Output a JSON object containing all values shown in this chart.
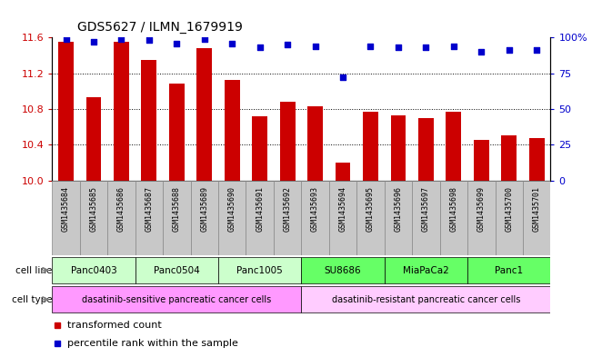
{
  "title": "GDS5627 / ILMN_1679919",
  "samples": [
    "GSM1435684",
    "GSM1435685",
    "GSM1435686",
    "GSM1435687",
    "GSM1435688",
    "GSM1435689",
    "GSM1435690",
    "GSM1435691",
    "GSM1435692",
    "GSM1435693",
    "GSM1435694",
    "GSM1435695",
    "GSM1435696",
    "GSM1435697",
    "GSM1435698",
    "GSM1435699",
    "GSM1435700",
    "GSM1435701"
  ],
  "bar_values": [
    11.55,
    10.93,
    11.55,
    11.35,
    11.08,
    11.48,
    11.13,
    10.72,
    10.88,
    10.83,
    10.2,
    10.77,
    10.73,
    10.7,
    10.77,
    10.46,
    10.51,
    10.48
  ],
  "dot_values": [
    99,
    97,
    99,
    98,
    96,
    99,
    96,
    93,
    95,
    94,
    72,
    94,
    93,
    93,
    94,
    90,
    91,
    91
  ],
  "bar_color": "#cc0000",
  "dot_color": "#0000cc",
  "ylim_left": [
    10.0,
    11.6
  ],
  "ylim_right": [
    0,
    100
  ],
  "yticks_left": [
    10.0,
    10.4,
    10.8,
    11.2,
    11.6
  ],
  "yticks_right": [
    0,
    25,
    50,
    75,
    100
  ],
  "ytick_labels_right": [
    "0",
    "25",
    "50",
    "75",
    "100%"
  ],
  "cell_lines": [
    {
      "label": "Panc0403",
      "start": 0,
      "end": 2
    },
    {
      "label": "Panc0504",
      "start": 3,
      "end": 5
    },
    {
      "label": "Panc1005",
      "start": 6,
      "end": 8
    },
    {
      "label": "SU8686",
      "start": 9,
      "end": 11
    },
    {
      "label": "MiaPaCa2",
      "start": 12,
      "end": 14
    },
    {
      "label": "Panc1",
      "start": 15,
      "end": 17
    }
  ],
  "cell_line_colors_list": [
    "#ccffcc",
    "#ccffcc",
    "#ccffcc",
    "#66ff66",
    "#66ff66",
    "#66ff66"
  ],
  "cell_types": [
    {
      "label": "dasatinib-sensitive pancreatic cancer cells",
      "start": 0,
      "end": 8,
      "color": "#ff99ff"
    },
    {
      "label": "dasatinib-resistant pancreatic cancer cells",
      "start": 9,
      "end": 17,
      "color": "#ffccff"
    }
  ],
  "bar_width": 0.55,
  "sample_bg_color": "#c8c8c8",
  "sample_border_color": "#888888",
  "legend_bar_color": "#cc0000",
  "legend_dot_color": "#0000cc",
  "legend_bar_label": "transformed count",
  "legend_dot_label": "percentile rank within the sample",
  "cell_line_label": "cell line",
  "cell_type_label": "cell type"
}
